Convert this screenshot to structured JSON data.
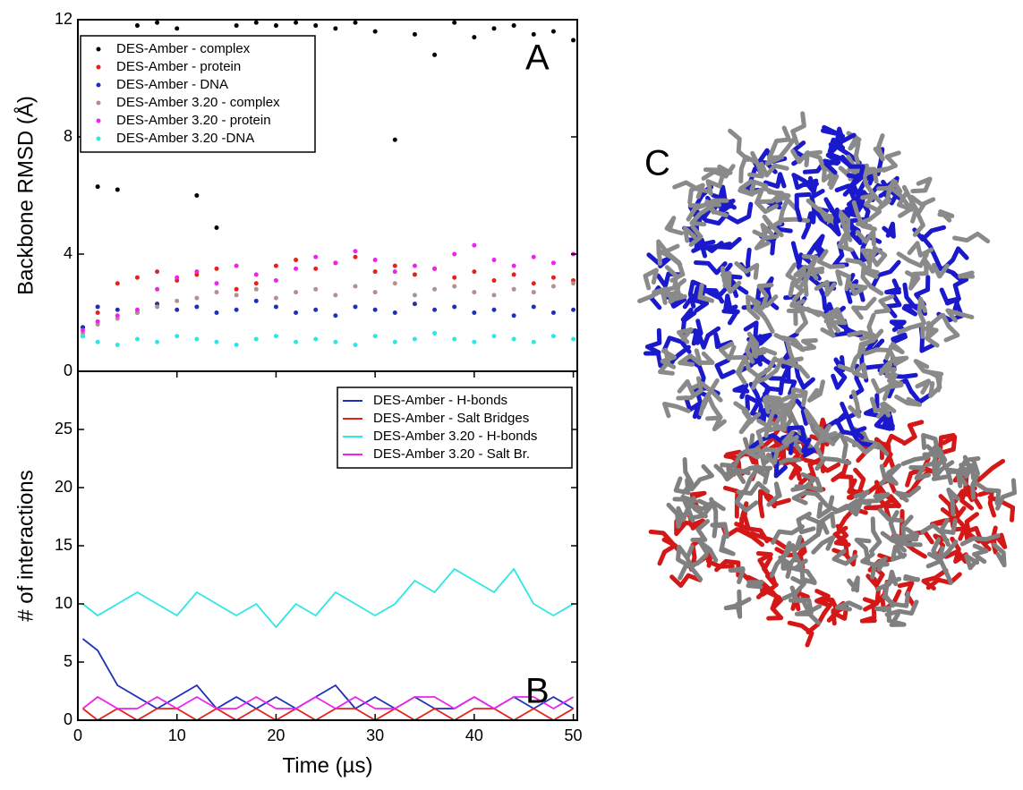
{
  "chart_data": [
    {
      "type": "scatter",
      "ylabel": "Backbone RMSD  (Å)",
      "annotation": "A",
      "xlim": [
        0,
        50.4
      ],
      "ylim": [
        0,
        12
      ],
      "yticks": [
        0,
        4,
        8,
        12
      ],
      "legend": "upper left",
      "x": [
        0.5,
        2,
        4,
        6,
        8,
        10,
        12,
        14,
        16,
        18,
        20,
        22,
        24,
        26,
        28,
        30,
        32,
        34,
        36,
        38,
        40,
        42,
        44,
        46,
        48,
        50
      ],
      "series": [
        {
          "name": "DES-Amber - complex",
          "color": "#000000",
          "values": [
            1.5,
            6.3,
            6.2,
            11.8,
            11.9,
            11.7,
            6.0,
            4.9,
            11.8,
            11.9,
            11.8,
            11.9,
            11.8,
            11.7,
            11.9,
            11.6,
            7.9,
            11.5,
            10.8,
            11.9,
            11.4,
            11.7,
            11.8,
            11.5,
            11.6,
            11.3
          ]
        },
        {
          "name": "DES-Amber - protein",
          "color": "#e8201c",
          "values": [
            1.2,
            2.0,
            3.0,
            3.2,
            3.4,
            3.1,
            3.3,
            3.5,
            2.8,
            3.0,
            3.6,
            3.8,
            3.5,
            3.7,
            3.9,
            3.4,
            3.6,
            3.3,
            3.5,
            3.2,
            3.4,
            3.1,
            3.3,
            3.0,
            3.2,
            3.1
          ]
        },
        {
          "name": "DES-Amber - DNA",
          "color": "#1f2fb8",
          "values": [
            1.5,
            2.2,
            2.1,
            2.0,
            2.3,
            2.1,
            2.2,
            2.0,
            2.1,
            2.4,
            2.2,
            2.0,
            2.1,
            1.9,
            2.2,
            2.1,
            2.0,
            2.3,
            2.1,
            2.2,
            2.0,
            2.1,
            1.9,
            2.2,
            2.0,
            2.1
          ]
        },
        {
          "name": "DES-Amber 3.20 - complex",
          "color": "#b39090",
          "values": [
            1.3,
            1.6,
            1.8,
            2.0,
            2.2,
            2.4,
            2.5,
            2.7,
            2.6,
            2.8,
            2.5,
            2.7,
            2.8,
            2.6,
            2.9,
            2.7,
            3.0,
            2.6,
            2.8,
            2.9,
            2.7,
            2.6,
            2.8,
            2.7,
            2.9,
            3.0
          ]
        },
        {
          "name": "DES-Amber 3.20 - protein",
          "color": "#ee22ee",
          "values": [
            1.4,
            1.7,
            1.9,
            2.1,
            2.8,
            3.2,
            3.4,
            3.0,
            3.6,
            3.3,
            3.1,
            3.5,
            3.9,
            3.7,
            4.1,
            3.8,
            3.4,
            3.6,
            3.5,
            4.0,
            4.3,
            3.8,
            3.6,
            3.9,
            3.7,
            4.0
          ]
        },
        {
          "name": "DES-Amber 3.20 -DNA",
          "color": "#2ee6e6",
          "values": [
            1.2,
            1.0,
            0.9,
            1.1,
            1.0,
            1.2,
            1.1,
            1.0,
            0.9,
            1.1,
            1.2,
            1.0,
            1.1,
            1.0,
            0.9,
            1.2,
            1.0,
            1.1,
            1.3,
            1.1,
            1.0,
            1.2,
            1.1,
            1.0,
            1.2,
            1.1
          ]
        }
      ]
    },
    {
      "type": "line",
      "ylabel": "# of interactions",
      "xlabel": "Time (µs)",
      "annotation": "B",
      "xlim": [
        0,
        50.4
      ],
      "xticks": [
        0,
        10,
        20,
        30,
        40,
        50
      ],
      "ylim": [
        0,
        30
      ],
      "yticks": [
        0,
        5,
        10,
        15,
        20,
        25
      ],
      "legend": "upper right",
      "x": [
        0.5,
        2,
        4,
        6,
        8,
        10,
        12,
        14,
        16,
        18,
        20,
        22,
        24,
        26,
        28,
        30,
        32,
        34,
        36,
        38,
        40,
        42,
        44,
        46,
        48,
        50
      ],
      "series": [
        {
          "name": "DES-Amber - H-bonds",
          "color": "#1f2fb8",
          "values": [
            7,
            6,
            3,
            2,
            1,
            2,
            3,
            1,
            2,
            1,
            2,
            1,
            2,
            3,
            1,
            2,
            1,
            2,
            1,
            1,
            2,
            1,
            2,
            1,
            2,
            1
          ]
        },
        {
          "name": "DES-Amber - Salt Bridges",
          "color": "#e8201c",
          "values": [
            1,
            0,
            1,
            0,
            1,
            1,
            0,
            1,
            0,
            1,
            0,
            1,
            0,
            1,
            1,
            0,
            1,
            0,
            1,
            0,
            1,
            1,
            0,
            1,
            0,
            1
          ]
        },
        {
          "name": "DES-Amber 3.20 - H-bonds",
          "color": "#2ee6e6",
          "values": [
            10,
            9,
            10,
            11,
            10,
            9,
            11,
            10,
            9,
            10,
            8,
            10,
            9,
            11,
            10,
            9,
            10,
            12,
            11,
            13,
            12,
            11,
            13,
            10,
            9,
            10
          ]
        },
        {
          "name": "DES-Amber 3.20 - Salt Br.",
          "color": "#ee22ee",
          "values": [
            1,
            2,
            1,
            1,
            2,
            1,
            2,
            1,
            1,
            2,
            1,
            1,
            2,
            1,
            2,
            1,
            1,
            2,
            2,
            1,
            2,
            1,
            2,
            2,
            1,
            2
          ]
        }
      ]
    }
  ],
  "panel_c": {
    "label": "C"
  }
}
